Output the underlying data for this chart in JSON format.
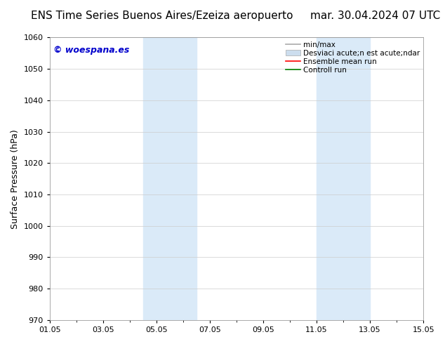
{
  "title_left": "ENS Time Series Buenos Aires/Ezeiza aeropuerto",
  "title_right": "mar. 30.04.2024 07 UTC",
  "ylabel": "Surface Pressure (hPa)",
  "ylim": [
    970,
    1060
  ],
  "yticks": [
    970,
    980,
    990,
    1000,
    1010,
    1020,
    1030,
    1040,
    1050,
    1060
  ],
  "xtick_labels": [
    "01.05",
    "03.05",
    "05.05",
    "07.05",
    "09.05",
    "11.05",
    "13.05",
    "15.05"
  ],
  "xtick_positions": [
    0,
    2,
    4,
    6,
    8,
    10,
    12,
    14
  ],
  "xmin": 0,
  "xmax": 14,
  "shaded_regions": [
    {
      "xstart": 3.5,
      "xend": 5.5
    },
    {
      "xstart": 10.0,
      "xend": 12.0
    }
  ],
  "shaded_color": "#daeaf8",
  "watermark_text": "© woespana.es",
  "watermark_color": "#0000cc",
  "legend_label_minmax": "min/max",
  "legend_label_std": "Desviaci acute;n est acute;ndar",
  "legend_label_ens": "Ensemble mean run",
  "legend_label_ctrl": "Controll run",
  "color_minmax": "#aaaaaa",
  "color_std": "#ccddee",
  "color_ens": "red",
  "color_ctrl": "green",
  "bg_color": "#ffffff",
  "grid_color": "#cccccc",
  "title_fontsize": 11,
  "ylabel_fontsize": 9,
  "tick_fontsize": 8,
  "legend_fontsize": 7.5,
  "watermark_fontsize": 9
}
